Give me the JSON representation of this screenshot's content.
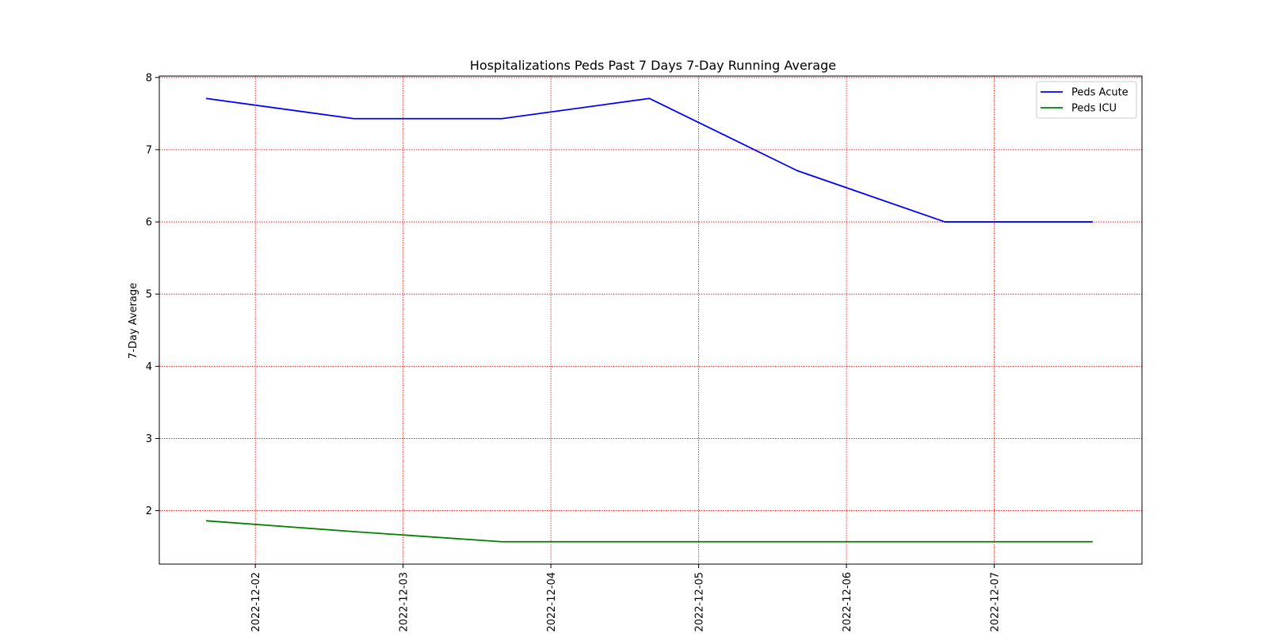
{
  "chart_data": {
    "type": "line",
    "title": "Hospitalizations Peds Past 7 Days 7-Day Running Average",
    "xlabel": "",
    "ylabel": "7-Day Average",
    "x": [
      "2022-12-01 16:00",
      "2022-12-02 16:00",
      "2022-12-03 16:00",
      "2022-12-04 16:00",
      "2022-12-05 16:00",
      "2022-12-06 16:00",
      "2022-12-07 16:00"
    ],
    "series": [
      {
        "name": "Peds Acute",
        "color": "#0000ff",
        "values": [
          7.71,
          7.43,
          7.43,
          7.71,
          6.71,
          6.0,
          6.0
        ]
      },
      {
        "name": "Peds ICU",
        "color": "#008000",
        "values": [
          1.86,
          1.71,
          1.57,
          1.57,
          1.57,
          1.57,
          1.57
        ]
      }
    ],
    "xlim": [
      "2022-12-01 08:24",
      "2022-12-08 00:00"
    ],
    "ylim": [
      1.26,
      8.02
    ],
    "xticks": [
      "2022-12-02",
      "2022-12-03",
      "2022-12-04",
      "2022-12-05",
      "2022-12-06",
      "2022-12-07"
    ],
    "yticks": [
      "2",
      "3",
      "4",
      "5",
      "6",
      "7",
      "8"
    ],
    "grid": true,
    "grid_color": "#ff0000",
    "legend_position": "top-right"
  }
}
